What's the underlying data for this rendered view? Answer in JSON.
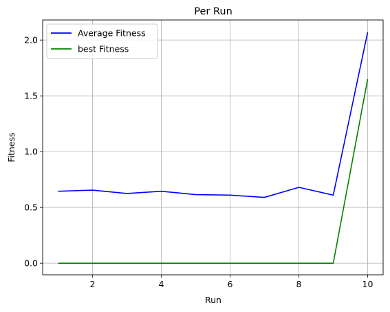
{
  "chart_data": {
    "type": "line",
    "title": "Per Run",
    "xlabel": "Run",
    "ylabel": "Fitness",
    "x": [
      1,
      2,
      3,
      4,
      5,
      6,
      7,
      8,
      9,
      10
    ],
    "xlim": [
      0.55,
      10.45
    ],
    "ylim": [
      -0.104,
      2.18
    ],
    "xticks": [
      2,
      4,
      6,
      8,
      10
    ],
    "xtick_labels": [
      "2",
      "4",
      "6",
      "8",
      "10"
    ],
    "yticks": [
      0.0,
      0.5,
      1.0,
      1.5,
      2.0
    ],
    "ytick_labels": [
      "0.0",
      "0.5",
      "1.0",
      "1.5",
      "2.0"
    ],
    "grid": true,
    "legend_position": "top-left",
    "series": [
      {
        "name": "Average Fitness",
        "color": "#0000ff",
        "values": [
          0.645,
          0.655,
          0.625,
          0.645,
          0.615,
          0.61,
          0.59,
          0.68,
          0.61,
          2.07
        ]
      },
      {
        "name": "best Fitness",
        "color": "#008000",
        "values": [
          0.0,
          0.0,
          0.0,
          0.0,
          0.0,
          0.0,
          0.0,
          0.0,
          0.0,
          1.65
        ]
      }
    ]
  }
}
